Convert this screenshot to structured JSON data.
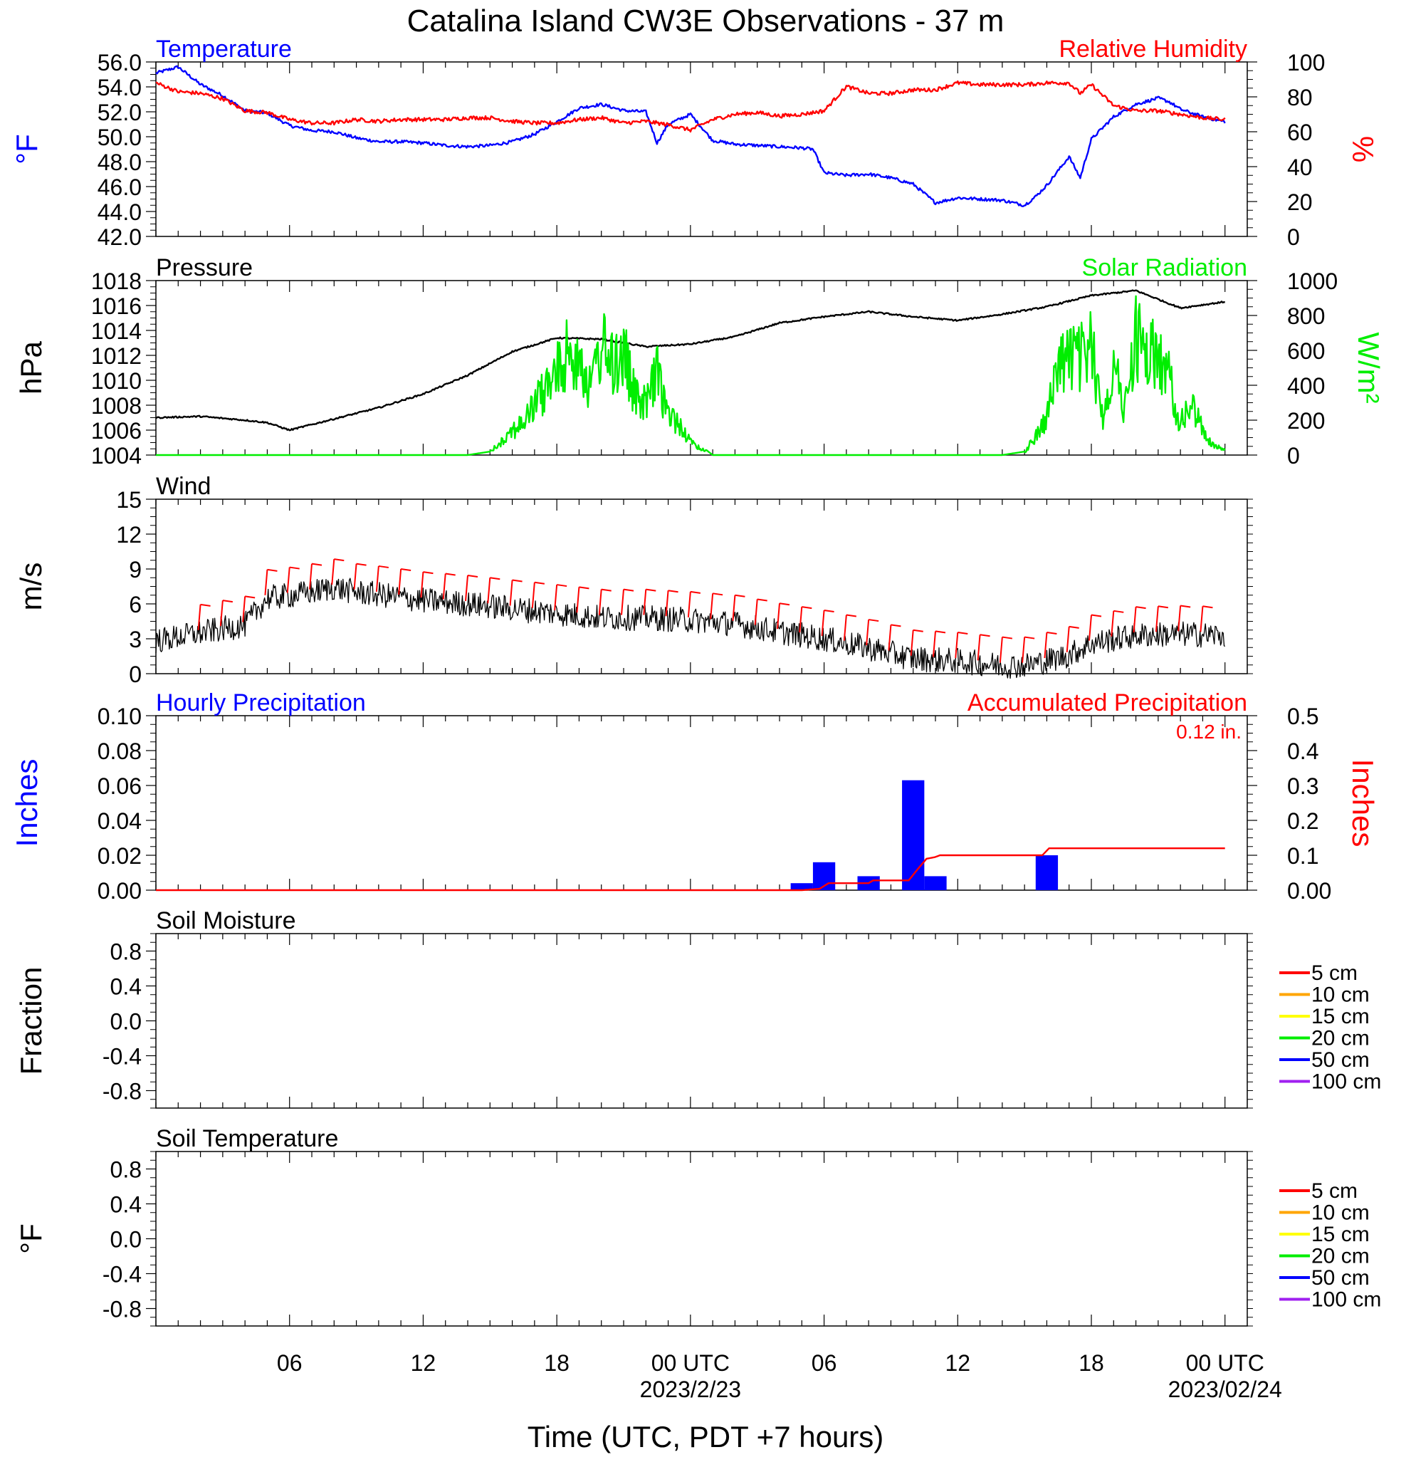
{
  "title": "Catalina Island CW3E Observations - 37 m",
  "xaxis": {
    "label": "Time (UTC, PDT +7 hours)",
    "ticks": [
      {
        "hour": 6,
        "label": "06",
        "sub": ""
      },
      {
        "hour": 12,
        "label": "12",
        "sub": ""
      },
      {
        "hour": 18,
        "label": "18",
        "sub": ""
      },
      {
        "hour": 24,
        "label": "00 UTC",
        "sub": "2023/2/23"
      },
      {
        "hour": 30,
        "label": "06",
        "sub": ""
      },
      {
        "hour": 36,
        "label": "12",
        "sub": ""
      },
      {
        "hour": 42,
        "label": "18",
        "sub": ""
      },
      {
        "hour": 48,
        "label": "00 UTC",
        "sub": "2023/02/24"
      }
    ]
  },
  "colors": {
    "temperature": "#0000ff",
    "humidity": "#ff0000",
    "pressure": "#000000",
    "solar": "#00ee00",
    "wind": "#000000",
    "barb": "#ff0000",
    "hourly": "#0000ff",
    "accum": "#ff0000"
  },
  "chart_data": [
    {
      "id": "temp-rh",
      "type": "line",
      "left_title": "Temperature",
      "right_title": "Relative Humidity",
      "ylabel_left": "°F",
      "ylabel_right": "%",
      "ylim_left": [
        42,
        56
      ],
      "ylim_right": [
        0,
        100
      ],
      "yticks_left": [
        "56.0",
        "54.0",
        "52.0",
        "50.0",
        "48.0",
        "46.0",
        "44.0",
        "42.0"
      ],
      "yticks_right": [
        "100",
        "80",
        "60",
        "40",
        "20",
        "0"
      ],
      "series": [
        {
          "name": "Temperature",
          "axis": "left",
          "x": [
            0,
            1,
            2,
            3,
            4,
            5,
            6,
            7,
            8,
            9,
            10,
            11,
            12,
            13,
            14,
            15,
            16,
            17,
            18,
            19,
            20,
            21,
            22,
            22.5,
            23,
            24,
            25,
            26,
            27,
            28,
            29,
            29.5,
            30,
            31,
            32,
            33,
            34,
            35,
            36,
            37,
            38,
            39,
            39.5,
            40,
            41,
            41.5,
            42,
            43,
            44,
            45,
            45.5,
            46,
            47,
            48
          ],
          "y": [
            55.1,
            55.6,
            54.2,
            53.3,
            52.1,
            51.9,
            50.9,
            50.5,
            50.4,
            49.9,
            49.6,
            49.6,
            49.5,
            49.3,
            49.2,
            49.3,
            49.6,
            50.2,
            51.2,
            52.3,
            52.6,
            52.1,
            52.0,
            49.5,
            51.0,
            51.8,
            49.7,
            49.4,
            49.3,
            49.2,
            49.1,
            49.0,
            47.1,
            46.9,
            47.0,
            46.7,
            46.2,
            44.7,
            45.1,
            45.0,
            44.9,
            44.5,
            45.2,
            46.1,
            48.4,
            46.7,
            49.8,
            51.6,
            52.6,
            53.1,
            52.8,
            52.2,
            51.6,
            51.2
          ]
        },
        {
          "name": "Relative Humidity",
          "axis": "right",
          "x": [
            0,
            1,
            2,
            3,
            4,
            5,
            6,
            7,
            8,
            9,
            10,
            11,
            12,
            13,
            14,
            15,
            16,
            17,
            18,
            19,
            20,
            21,
            22,
            23,
            24,
            25,
            26,
            27,
            28,
            29,
            30,
            31,
            32,
            33,
            34,
            35,
            36,
            37,
            38,
            39,
            40,
            41,
            41.5,
            42,
            43,
            44,
            45,
            46,
            47,
            48
          ],
          "y": [
            88,
            83,
            82,
            79,
            72,
            71,
            67,
            65,
            65,
            67,
            66,
            67,
            67,
            67,
            68,
            68,
            66,
            65,
            65,
            67,
            68,
            65,
            66,
            64,
            61,
            67,
            70,
            71,
            69,
            70,
            72,
            86,
            82,
            82,
            84,
            84,
            88,
            87,
            87,
            87,
            88,
            88,
            82,
            87,
            75,
            72,
            72,
            70,
            68,
            67
          ]
        }
      ]
    },
    {
      "id": "pressure-solar",
      "type": "line",
      "left_title": "Pressure",
      "right_title": "Solar Radiation",
      "ylabel_left": "hPa",
      "ylabel_right": "W/m²",
      "ylim_left": [
        1004,
        1018
      ],
      "ylim_right": [
        0,
        1000
      ],
      "yticks_left": [
        "1018",
        "1016",
        "1014",
        "1012",
        "1010",
        "1008",
        "1006",
        "1004"
      ],
      "yticks_right": [
        "1000",
        "800",
        "600",
        "400",
        "200",
        "0"
      ],
      "series": [
        {
          "name": "Pressure",
          "axis": "left",
          "x": [
            0,
            2,
            4,
            5,
            6,
            8,
            10,
            12,
            14,
            16,
            18,
            20,
            22,
            24,
            26,
            28,
            30,
            32,
            34,
            36,
            38,
            40,
            42,
            43,
            44,
            46,
            48
          ],
          "y": [
            1007.0,
            1007.1,
            1006.8,
            1006.6,
            1006.0,
            1006.9,
            1007.8,
            1008.9,
            1010.4,
            1012.3,
            1013.4,
            1013.3,
            1012.7,
            1012.9,
            1013.5,
            1014.6,
            1015.1,
            1015.5,
            1015.1,
            1014.8,
            1015.3,
            1015.9,
            1016.8,
            1017.0,
            1017.2,
            1015.8,
            1016.3
          ]
        },
        {
          "name": "Solar Radiation",
          "axis": "right",
          "x": [
            0,
            14,
            15,
            16,
            16.5,
            17,
            17.5,
            18,
            18.5,
            19,
            19.5,
            20,
            20.5,
            21,
            21.5,
            22,
            22.5,
            23,
            23.5,
            24,
            25,
            38,
            39,
            39.5,
            40,
            40.5,
            41,
            41.5,
            42,
            42.5,
            43,
            43.5,
            44,
            44.5,
            45,
            45.5,
            46,
            46.5,
            47,
            47.5,
            48
          ],
          "y": [
            0,
            0,
            20,
            200,
            250,
            400,
            520,
            640,
            800,
            820,
            500,
            900,
            700,
            820,
            450,
            400,
            640,
            320,
            250,
            100,
            0,
            0,
            20,
            150,
            300,
            700,
            800,
            750,
            850,
            300,
            700,
            350,
            950,
            800,
            780,
            600,
            240,
            400,
            200,
            70,
            40
          ]
        }
      ]
    },
    {
      "id": "wind",
      "type": "line",
      "left_title": "Wind",
      "ylabel_left": "m/s",
      "ylim_left": [
        0,
        15
      ],
      "yticks_left": [
        "15",
        "12",
        "9",
        "6",
        "3",
        "0"
      ],
      "series": [
        {
          "name": "Wind speed",
          "axis": "left",
          "x": [
            0,
            2,
            4,
            5,
            6,
            7,
            8,
            9,
            10,
            12,
            14,
            16,
            18,
            20,
            22,
            24,
            26,
            28,
            30,
            32,
            34,
            36,
            38,
            39,
            40,
            41,
            42,
            44,
            46,
            48
          ],
          "y": [
            2.8,
            3.5,
            4.2,
            6.5,
            6.7,
            7.0,
            7.4,
            7.0,
            6.8,
            6.3,
            6.0,
            5.6,
            5.2,
            4.8,
            4.8,
            4.6,
            4.3,
            3.6,
            3.0,
            2.2,
            1.3,
            1.1,
            0.7,
            0.7,
            1.1,
            1.6,
            2.6,
            3.3,
            3.4,
            3.3
          ]
        }
      ],
      "barb_hours": [
        2,
        3,
        4,
        5,
        6,
        7,
        8,
        9,
        10,
        11,
        12,
        13,
        14,
        15,
        16,
        17,
        18,
        19,
        20,
        21,
        22,
        23,
        24,
        25,
        26,
        27,
        28,
        29,
        30,
        31,
        32,
        33,
        34,
        35,
        36,
        37,
        38,
        39,
        40,
        41,
        42,
        43,
        44,
        45,
        46,
        47
      ]
    },
    {
      "id": "precip",
      "type": "bar",
      "left_title": "Hourly Precipitation",
      "right_title": "Accumulated Precipitation",
      "annotation": "0.12 in.",
      "ylabel_left": "Inches",
      "ylabel_right": "Inches",
      "ylim_left": [
        0,
        0.1
      ],
      "ylim_right": [
        0,
        0.5
      ],
      "yticks_left": [
        "0.10",
        "0.08",
        "0.06",
        "0.04",
        "0.02",
        "0.00"
      ],
      "yticks_right": [
        "0.5",
        "0.4",
        "0.3",
        "0.2",
        "0.1",
        "0.00"
      ],
      "bars": [
        {
          "hour": 29,
          "value": 0.004
        },
        {
          "hour": 30,
          "value": 0.016
        },
        {
          "hour": 32,
          "value": 0.008
        },
        {
          "hour": 34,
          "value": 0.063
        },
        {
          "hour": 35,
          "value": 0.008
        },
        {
          "hour": 40,
          "value": 0.02
        }
      ],
      "accum": {
        "x": [
          0,
          29,
          29.8,
          30.2,
          32,
          32.2,
          33.8,
          34.2,
          34.6,
          35,
          35.2,
          39.8,
          40.1,
          48
        ],
        "y": [
          0,
          0,
          0.004,
          0.02,
          0.02,
          0.028,
          0.028,
          0.06,
          0.09,
          0.095,
          0.1,
          0.1,
          0.12,
          0.12
        ]
      }
    },
    {
      "id": "soil-moisture",
      "type": "line",
      "left_title": "Soil Moisture",
      "ylabel_left": "Fraction",
      "ylim_left": [
        -1,
        1
      ],
      "yticks_left": [
        "0.8",
        "0.4",
        "0.0",
        "-0.4",
        "-0.8"
      ],
      "legend": [
        {
          "label": "5 cm",
          "color": "#ff0000"
        },
        {
          "label": "10 cm",
          "color": "#ffa500"
        },
        {
          "label": "15 cm",
          "color": "#ffff00"
        },
        {
          "label": "20 cm",
          "color": "#00ee00"
        },
        {
          "label": "50 cm",
          "color": "#0000ff"
        },
        {
          "label": "100 cm",
          "color": "#a020f0"
        }
      ]
    },
    {
      "id": "soil-temperature",
      "type": "line",
      "left_title": "Soil Temperature",
      "ylabel_left": "°F",
      "ylim_left": [
        -1,
        1
      ],
      "yticks_left": [
        "0.8",
        "0.4",
        "0.0",
        "-0.4",
        "-0.8"
      ],
      "legend": [
        {
          "label": "5 cm",
          "color": "#ff0000"
        },
        {
          "label": "10 cm",
          "color": "#ffa500"
        },
        {
          "label": "15 cm",
          "color": "#ffff00"
        },
        {
          "label": "20 cm",
          "color": "#00ee00"
        },
        {
          "label": "50 cm",
          "color": "#0000ff"
        },
        {
          "label": "100 cm",
          "color": "#a020f0"
        }
      ]
    }
  ]
}
